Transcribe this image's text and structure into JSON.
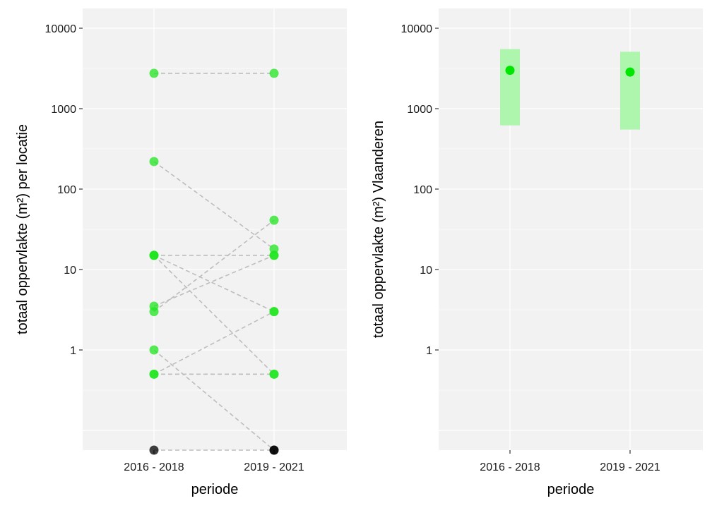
{
  "chart_data": [
    {
      "type": "scatter",
      "xlabel": "periode",
      "ylabel": "totaal oppervlakte (m²) per locatie",
      "y_scale": "log10",
      "ylim": [
        0.07,
        20000
      ],
      "yticks": [
        {
          "value": 1,
          "label": "1"
        },
        {
          "value": 10,
          "label": "10"
        },
        {
          "value": 100,
          "label": "100"
        },
        {
          "value": 1000,
          "label": "1000"
        },
        {
          "value": 10000,
          "label": "10000"
        }
      ],
      "categories": [
        "2016 - 2018",
        "2019 - 2021"
      ],
      "grid": true,
      "point_color": "#1fe51f",
      "zero_color": "#000000",
      "line_color": "#bdbdbd",
      "series": [
        {
          "values": [
            2750,
            2750
          ]
        },
        {
          "values": [
            220,
            18
          ]
        },
        {
          "values": [
            15,
            15
          ]
        },
        {
          "values": [
            15,
            3
          ]
        },
        {
          "values": [
            15,
            0.5
          ]
        },
        {
          "values": [
            3.5,
            15
          ]
        },
        {
          "values": [
            3,
            41
          ]
        },
        {
          "values": [
            1,
            0
          ]
        },
        {
          "values": [
            0.5,
            0.5
          ]
        },
        {
          "values": [
            0.5,
            3
          ]
        },
        {
          "values": [
            0,
            0
          ]
        }
      ]
    },
    {
      "type": "scatter",
      "xlabel": "periode",
      "ylabel": "totaal oppervlakte (m²) Vlaanderen",
      "y_scale": "log10",
      "ylim": [
        0.07,
        20000
      ],
      "yticks": [
        {
          "value": 1,
          "label": "1"
        },
        {
          "value": 10,
          "label": "10"
        },
        {
          "value": 100,
          "label": "100"
        },
        {
          "value": 1000,
          "label": "1000"
        },
        {
          "value": 10000,
          "label": "10000"
        }
      ],
      "categories": [
        "2016 - 2018",
        "2019 - 2021"
      ],
      "grid": true,
      "point_color": "#00e600",
      "interval_color": "#a6f5a6",
      "points": [
        {
          "category": "2016 - 2018",
          "estimate": 3000,
          "lower": 620,
          "upper": 5500
        },
        {
          "category": "2019 - 2021",
          "estimate": 2850,
          "lower": 550,
          "upper": 5100
        }
      ]
    }
  ]
}
